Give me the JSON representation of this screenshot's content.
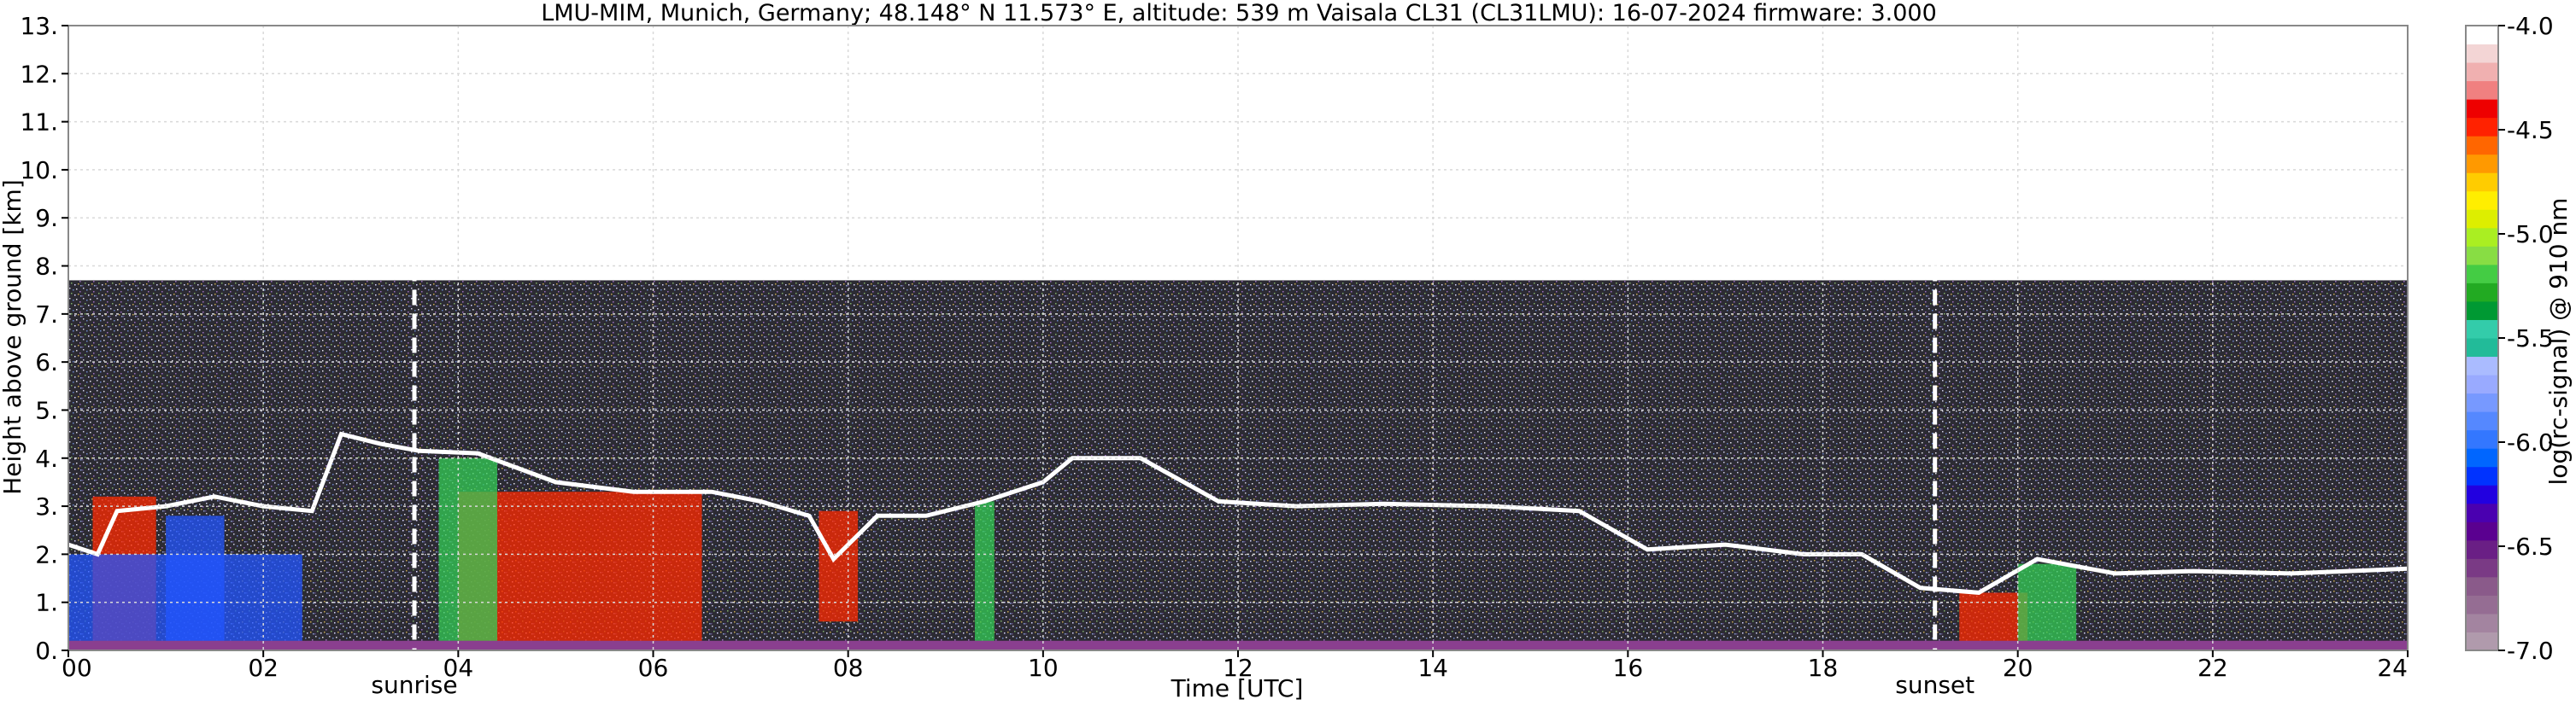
{
  "chart_data": {
    "type": "heatmap",
    "title": "LMU-MIM, Munich, Germany; 48.148° N 11.573° E, altitude: 539 m    Vaisala CL31 (CL31LMU): 16-07-2024    firmware: 3.000",
    "xlabel": "Time [UTC]",
    "ylabel": "Height above ground [km]",
    "xlim": [
      0,
      24
    ],
    "ylim": [
      0,
      13
    ],
    "x_ticks": [
      "00",
      "02",
      "04",
      "06",
      "08",
      "10",
      "12",
      "14",
      "16",
      "18",
      "20",
      "22",
      "24"
    ],
    "x_tick_values": [
      0,
      2,
      4,
      6,
      8,
      10,
      12,
      14,
      16,
      18,
      20,
      22,
      24
    ],
    "y_ticks": [
      "0.",
      "1.",
      "2.",
      "3.",
      "4.",
      "5.",
      "6.",
      "7.",
      "8.",
      "9.",
      "10.",
      "11.",
      "12.",
      "13."
    ],
    "y_tick_values": [
      0,
      1,
      2,
      3,
      4,
      5,
      6,
      7,
      8,
      9,
      10,
      11,
      12,
      13
    ],
    "grid": true,
    "data_top_km": 7.7,
    "colorbar": {
      "label": "log(rc-signal) @ 910 nm",
      "range": [
        -7.0,
        -4.0
      ],
      "ticks": [
        "-4.0",
        "-4.5",
        "-5.0",
        "-5.5",
        "-6.0",
        "-6.5",
        "-7.0"
      ],
      "tick_values": [
        -4.0,
        -4.5,
        -5.0,
        -5.5,
        -6.0,
        -6.5,
        -7.0
      ],
      "colors": [
        "#b09aac",
        "#a384a0",
        "#956d93",
        "#8a5a8a",
        "#7a3a85",
        "#6a1f85",
        "#5a0090",
        "#4a00b0",
        "#2200e0",
        "#0033ff",
        "#0066ff",
        "#3377ff",
        "#5588ff",
        "#7799ff",
        "#99aaff",
        "#aabbff",
        "#22bb99",
        "#33ccaa",
        "#009933",
        "#22aa22",
        "#44cc44",
        "#88dd44",
        "#aaee22",
        "#ddee00",
        "#ffee00",
        "#ffcc00",
        "#ff9900",
        "#ff6600",
        "#ff2200",
        "#ee0000",
        "#f08080",
        "#f0b0b0",
        "#f3d5d5",
        "#ffffff"
      ]
    },
    "annotations": [
      {
        "label": "sunrise",
        "x": 3.55
      },
      {
        "label": "sunset",
        "x": 19.15
      }
    ],
    "cloud_base_km": [
      {
        "t": 0.0,
        "h": 2.2
      },
      {
        "t": 0.3,
        "h": 2.0
      },
      {
        "t": 0.5,
        "h": 2.9
      },
      {
        "t": 1.0,
        "h": 3.0
      },
      {
        "t": 1.5,
        "h": 3.2
      },
      {
        "t": 2.0,
        "h": 3.0
      },
      {
        "t": 2.5,
        "h": 2.9
      },
      {
        "t": 2.8,
        "h": 4.5
      },
      {
        "t": 3.2,
        "h": 4.3
      },
      {
        "t": 3.6,
        "h": 4.15
      },
      {
        "t": 4.2,
        "h": 4.1
      },
      {
        "t": 5.0,
        "h": 3.5
      },
      {
        "t": 5.8,
        "h": 3.3
      },
      {
        "t": 6.6,
        "h": 3.3
      },
      {
        "t": 7.1,
        "h": 3.1
      },
      {
        "t": 7.6,
        "h": 2.8
      },
      {
        "t": 7.85,
        "h": 1.9
      },
      {
        "t": 8.3,
        "h": 2.8
      },
      {
        "t": 8.8,
        "h": 2.8
      },
      {
        "t": 9.4,
        "h": 3.1
      },
      {
        "t": 10.0,
        "h": 3.5
      },
      {
        "t": 10.3,
        "h": 4.0
      },
      {
        "t": 11.0,
        "h": 4.0
      },
      {
        "t": 11.8,
        "h": 3.1
      },
      {
        "t": 12.6,
        "h": 3.0
      },
      {
        "t": 13.5,
        "h": 3.05
      },
      {
        "t": 14.6,
        "h": 3.0
      },
      {
        "t": 15.5,
        "h": 2.9
      },
      {
        "t": 16.2,
        "h": 2.1
      },
      {
        "t": 17.0,
        "h": 2.2
      },
      {
        "t": 17.8,
        "h": 2.0
      },
      {
        "t": 18.4,
        "h": 2.0
      },
      {
        "t": 19.0,
        "h": 1.3
      },
      {
        "t": 19.6,
        "h": 1.2
      },
      {
        "t": 20.2,
        "h": 1.9
      },
      {
        "t": 21.0,
        "h": 1.6
      },
      {
        "t": 21.8,
        "h": 1.65
      },
      {
        "t": 22.8,
        "h": 1.6
      },
      {
        "t": 24.0,
        "h": 1.7
      }
    ],
    "high_signal_regions": [
      {
        "t0": 0.25,
        "t1": 0.9,
        "h0": 0.1,
        "h1": 3.2,
        "level": "red"
      },
      {
        "t0": 0.0,
        "t1": 2.4,
        "h0": 0.05,
        "h1": 2.0,
        "level": "blue"
      },
      {
        "t0": 1.0,
        "t1": 1.6,
        "h0": 0.05,
        "h1": 2.8,
        "level": "blue"
      },
      {
        "t0": 4.0,
        "t1": 6.5,
        "h0": 0.05,
        "h1": 3.3,
        "level": "red"
      },
      {
        "t0": 3.8,
        "t1": 4.4,
        "h0": 0.05,
        "h1": 4.0,
        "level": "green"
      },
      {
        "t0": 9.3,
        "t1": 9.5,
        "h0": 0.05,
        "h1": 3.1,
        "level": "green"
      },
      {
        "t0": 7.7,
        "t1": 8.1,
        "h0": 0.6,
        "h1": 2.9,
        "level": "red"
      },
      {
        "t0": 19.4,
        "t1": 20.1,
        "h0": 0.05,
        "h1": 1.2,
        "level": "red"
      },
      {
        "t0": 20.0,
        "t1": 20.6,
        "h0": 0.05,
        "h1": 1.8,
        "level": "green"
      }
    ]
  }
}
